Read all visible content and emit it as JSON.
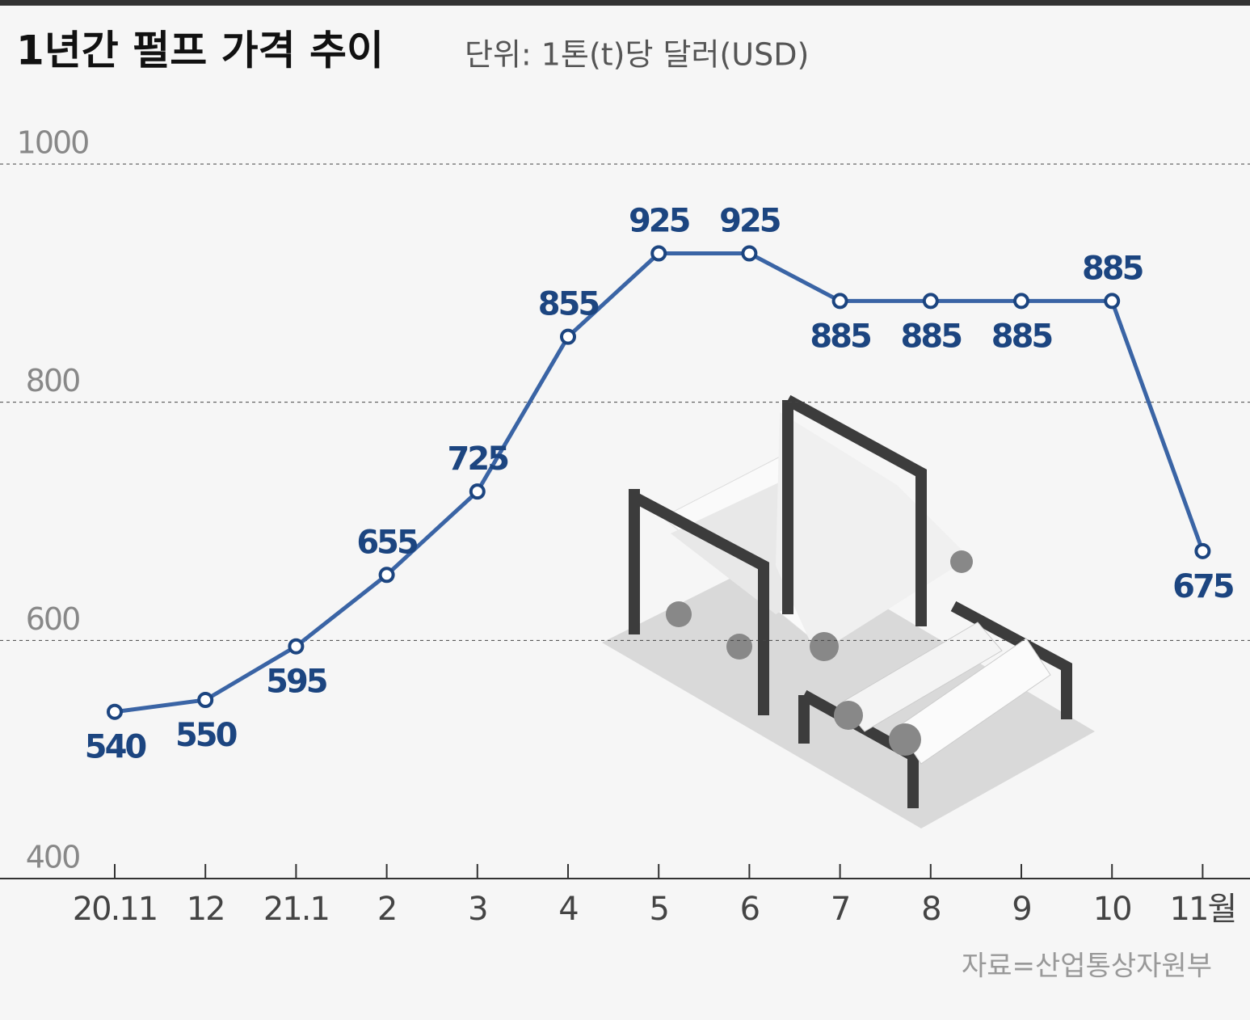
{
  "chart_data": {
    "type": "line",
    "title": "1년간 펄프 가격 추이",
    "subtitle": "단위: 1톤(t)당 달러(USD)",
    "source": "자료=산업통상자원부",
    "categories": [
      "20.11",
      "12",
      "21.1",
      "2",
      "3",
      "4",
      "5",
      "6",
      "7",
      "8",
      "9",
      "10",
      "11월"
    ],
    "series": [
      {
        "name": "펄프 가격",
        "color": "#3a64a5",
        "values": [
          540,
          550,
          595,
          655,
          725,
          855,
          925,
          925,
          885,
          885,
          885,
          885,
          675
        ]
      }
    ],
    "ylim": [
      400,
      1000
    ],
    "yticks": [
      400,
      600,
      800,
      1000
    ],
    "grid": true
  }
}
